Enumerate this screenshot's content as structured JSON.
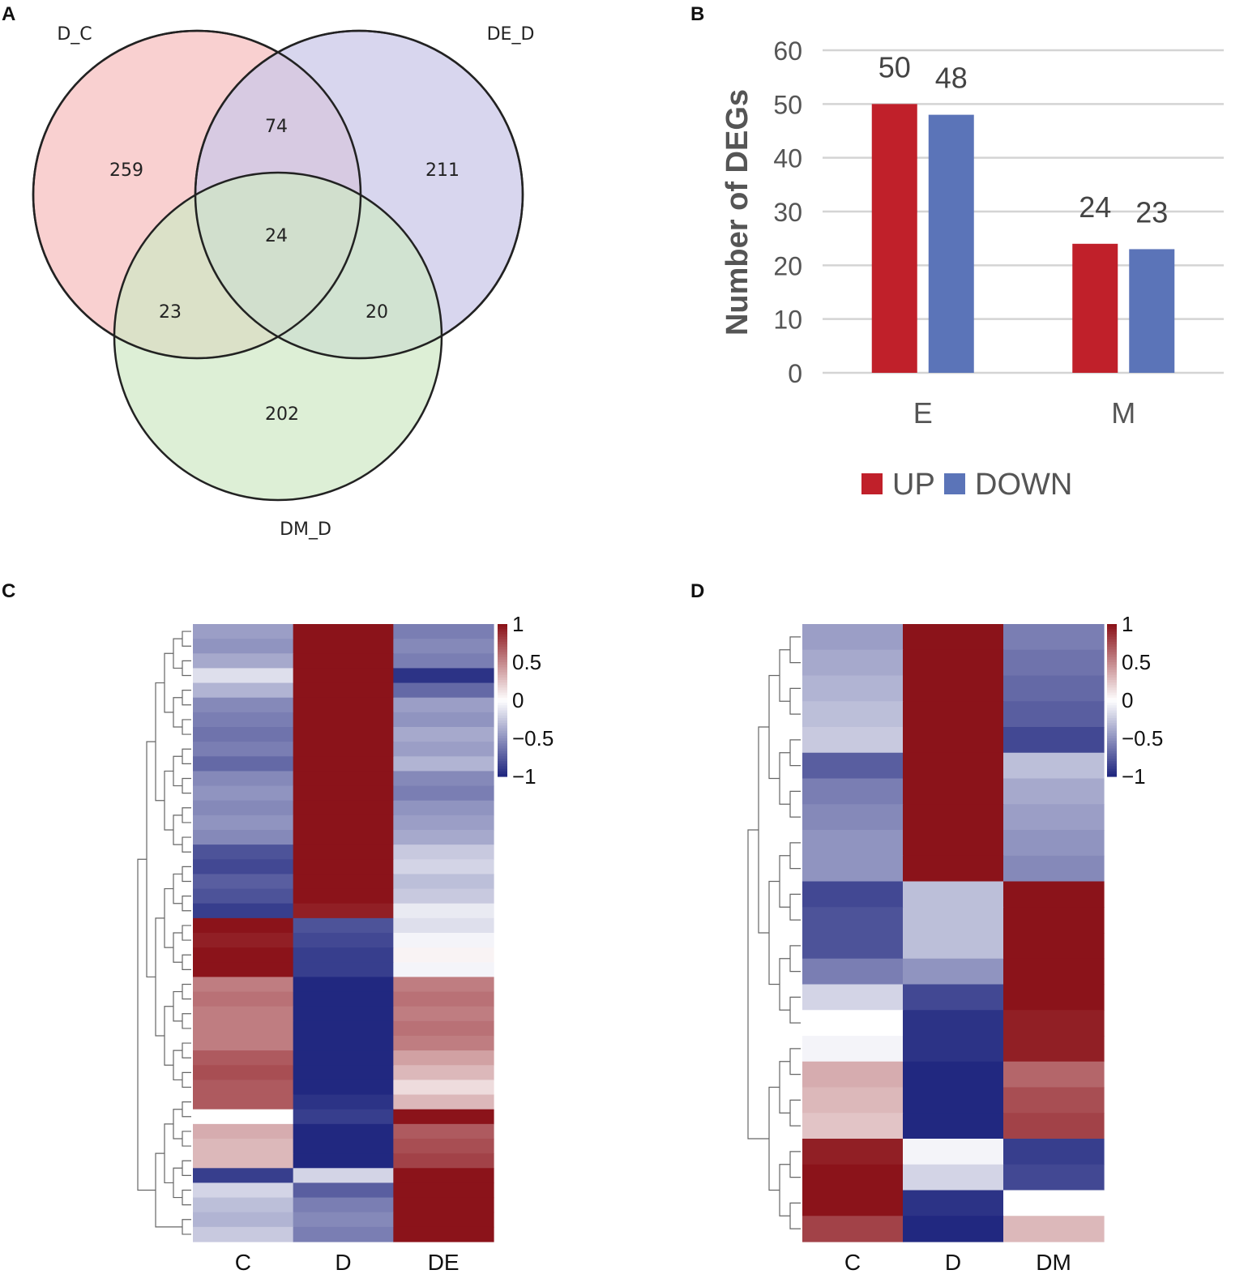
{
  "panels": {
    "a": "A",
    "b": "B",
    "c": "C",
    "d": "D"
  },
  "chart_data": [
    {
      "type": "venn",
      "panel": "A",
      "sets": [
        "D_C",
        "DE_D",
        "DM_D"
      ],
      "regions": {
        "D_C_only": 259,
        "DE_D_only": 211,
        "DM_D_only": 202,
        "D_C_and_DE_D": 74,
        "D_C_and_DM_D": 23,
        "DE_D_and_DM_D": 20,
        "all_three": 24
      },
      "colors": [
        "#f8c8c8",
        "#cbc8e8",
        "#cfe8c4"
      ]
    },
    {
      "type": "bar",
      "panel": "B",
      "categories": [
        "E",
        "M"
      ],
      "series": [
        {
          "name": "UP",
          "values": [
            50,
            24
          ],
          "color": "#c0202a"
        },
        {
          "name": "DOWN",
          "values": [
            48,
            23
          ],
          "color": "#5b74b8"
        }
      ],
      "ylabel": "Number of DEGs",
      "ylim": [
        0,
        60
      ],
      "yticks": [
        0,
        10,
        20,
        30,
        40,
        50,
        60
      ],
      "grid": true,
      "legend": "bottom"
    },
    {
      "type": "heatmap",
      "panel": "C",
      "columns": [
        "C",
        "D",
        "DE"
      ],
      "scale_ticks": [
        "1",
        "0.5",
        "0",
        "−0.5",
        "−1"
      ],
      "scale_range": [
        -1,
        1
      ],
      "rows": [
        [
          -0.45,
          1,
          -0.6
        ],
        [
          -0.5,
          1,
          -0.55
        ],
        [
          -0.4,
          1,
          -0.6
        ],
        [
          -0.15,
          1,
          -0.95
        ],
        [
          -0.35,
          1,
          -0.7
        ],
        [
          -0.55,
          1,
          -0.45
        ],
        [
          -0.6,
          1,
          -0.5
        ],
        [
          -0.65,
          1,
          -0.4
        ],
        [
          -0.6,
          1,
          -0.45
        ],
        [
          -0.7,
          1,
          -0.35
        ],
        [
          -0.55,
          1,
          -0.55
        ],
        [
          -0.5,
          1,
          -0.6
        ],
        [
          -0.55,
          1,
          -0.5
        ],
        [
          -0.5,
          1,
          -0.45
        ],
        [
          -0.55,
          1,
          -0.4
        ],
        [
          -0.8,
          1,
          -0.25
        ],
        [
          -0.85,
          1,
          -0.2
        ],
        [
          -0.75,
          1,
          -0.3
        ],
        [
          -0.8,
          1,
          -0.25
        ],
        [
          -0.9,
          0.95,
          -0.1
        ],
        [
          1,
          -0.8,
          -0.15
        ],
        [
          0.95,
          -0.85,
          -0.05
        ],
        [
          1,
          -0.9,
          0.05
        ],
        [
          1,
          -0.9,
          -0.05
        ],
        [
          0.55,
          -1,
          0.55
        ],
        [
          0.6,
          -1,
          0.6
        ],
        [
          0.55,
          -1,
          0.55
        ],
        [
          0.55,
          -1,
          0.6
        ],
        [
          0.55,
          -1,
          0.55
        ],
        [
          0.7,
          -1,
          0.4
        ],
        [
          0.75,
          -1,
          0.3
        ],
        [
          0.7,
          -1,
          0.15
        ],
        [
          0.7,
          -0.95,
          0.3
        ],
        [
          0.0,
          -0.9,
          1
        ],
        [
          0.35,
          -1,
          0.7
        ],
        [
          0.3,
          -1,
          0.75
        ],
        [
          0.3,
          -1,
          0.8
        ],
        [
          -0.9,
          -0.2,
          1
        ],
        [
          -0.2,
          -0.75,
          1
        ],
        [
          -0.3,
          -0.6,
          1
        ],
        [
          -0.35,
          -0.55,
          1
        ],
        [
          -0.25,
          -0.6,
          1
        ]
      ]
    },
    {
      "type": "heatmap",
      "panel": "D",
      "columns": [
        "C",
        "D",
        "DM"
      ],
      "scale_ticks": [
        "1",
        "0.5",
        "0",
        "−0.5",
        "−1"
      ],
      "scale_range": [
        -1,
        1
      ],
      "rows": [
        [
          -0.45,
          1,
          -0.6
        ],
        [
          -0.4,
          1,
          -0.65
        ],
        [
          -0.35,
          1,
          -0.7
        ],
        [
          -0.3,
          1,
          -0.75
        ],
        [
          -0.25,
          1,
          -0.85
        ],
        [
          -0.75,
          1,
          -0.3
        ],
        [
          -0.6,
          1,
          -0.4
        ],
        [
          -0.55,
          1,
          -0.45
        ],
        [
          -0.5,
          1,
          -0.5
        ],
        [
          -0.5,
          1,
          -0.55
        ],
        [
          -0.85,
          -0.3,
          1
        ],
        [
          -0.8,
          -0.3,
          1
        ],
        [
          -0.8,
          -0.3,
          1
        ],
        [
          -0.6,
          -0.5,
          1
        ],
        [
          -0.2,
          -0.85,
          1
        ],
        [
          0.0,
          -0.95,
          0.95
        ],
        [
          -0.05,
          -0.95,
          0.95
        ],
        [
          0.35,
          -1,
          0.65
        ],
        [
          0.3,
          -1,
          0.75
        ],
        [
          0.25,
          -1,
          0.8
        ],
        [
          0.95,
          -0.05,
          -0.9
        ],
        [
          1,
          -0.2,
          -0.85
        ],
        [
          1,
          -0.95,
          0.0
        ],
        [
          0.8,
          -1,
          0.3
        ]
      ]
    }
  ]
}
